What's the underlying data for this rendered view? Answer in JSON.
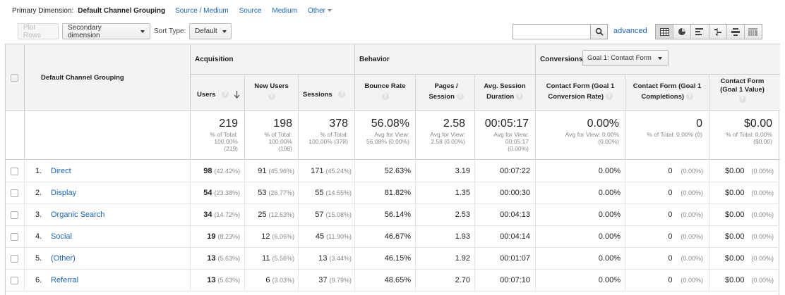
{
  "primary_dimension": {
    "label": "Primary Dimension:",
    "current": "Default Channel Grouping",
    "options": [
      "Source / Medium",
      "Source",
      "Medium",
      "Other"
    ]
  },
  "toolbar": {
    "plot_rows": "Plot Rows",
    "secondary_dimension": "Secondary dimension",
    "sort_type_label": "Sort Type:",
    "sort_type_value": "Default",
    "search_value": "",
    "advanced": "advanced",
    "view_icons": [
      "table-view-icon",
      "pie-view-icon",
      "performance-view-icon",
      "comparison-view-icon",
      "term-cloud-view-icon",
      "pivot-view-icon"
    ]
  },
  "header": {
    "dimension_col": "Default Channel Grouping",
    "acquisition": "Acquisition",
    "behavior": "Behavior",
    "conversions": "Conversions",
    "goal_select": "Goal 1: Contact Form",
    "cols": {
      "users": "Users",
      "new_users": "New Users",
      "sessions": "Sessions",
      "bounce_rate": "Bounce Rate",
      "pages_session": "Pages / Session",
      "avg_session": "Avg. Session Duration",
      "conv_rate": "Contact Form (Goal 1 Conversion Rate)",
      "completions": "Contact Form (Goal 1 Completions)",
      "value": "Contact Form (Goal 1 Value)"
    }
  },
  "totals": {
    "users": {
      "big": "219",
      "l1": "% of Total:",
      "l2": "100.00%",
      "l3": "(219)"
    },
    "new_users": {
      "big": "198",
      "l1": "% of Total:",
      "l2": "100.00%",
      "l3": "(198)"
    },
    "sessions": {
      "big": "378",
      "l1": "% of Total:",
      "l2": "100.00% (378)"
    },
    "bounce_rate": {
      "big": "56.08%",
      "l1": "Avg for View:",
      "l2": "56.08% (0.00%)"
    },
    "pages_session": {
      "big": "2.58",
      "l1": "Avg for View:",
      "l2": "2.58 (0.00%)"
    },
    "avg_session": {
      "big": "00:05:17",
      "l1": "Avg for View:",
      "l2": "00:05:17",
      "l3": "(0.00%)"
    },
    "conv_rate": {
      "big": "0.00%",
      "l1": "Avg for View: 0.00%",
      "l2": "(0.00%)"
    },
    "completions": {
      "big": "0",
      "l1": "% of Total: 0.00% (0)"
    },
    "value": {
      "big": "$0.00",
      "l1": "% of Total: 0.00%",
      "l2": "($0.00)"
    }
  },
  "rows": [
    {
      "idx": "1.",
      "name": "Direct",
      "users": "98",
      "users_pct": "(42.42%)",
      "new_users": "91",
      "new_users_pct": "(45.96%)",
      "sessions": "171",
      "sessions_pct": "(45.24%)",
      "bounce": "52.63%",
      "pages": "3.19",
      "duration": "00:07:22",
      "conv_rate": "0.00%",
      "completions": "0",
      "completions_pct": "(0.00%)",
      "value": "$0.00",
      "value_pct": "(0.00%)"
    },
    {
      "idx": "2.",
      "name": "Display",
      "users": "54",
      "users_pct": "(23.38%)",
      "new_users": "53",
      "new_users_pct": "(26.77%)",
      "sessions": "55",
      "sessions_pct": "(14.55%)",
      "bounce": "81.82%",
      "pages": "1.35",
      "duration": "00:00:30",
      "conv_rate": "0.00%",
      "completions": "0",
      "completions_pct": "(0.00%)",
      "value": "$0.00",
      "value_pct": "(0.00%)"
    },
    {
      "idx": "3.",
      "name": "Organic Search",
      "users": "34",
      "users_pct": "(14.72%)",
      "new_users": "25",
      "new_users_pct": "(12.63%)",
      "sessions": "57",
      "sessions_pct": "(15.08%)",
      "bounce": "56.14%",
      "pages": "2.53",
      "duration": "00:04:13",
      "conv_rate": "0.00%",
      "completions": "0",
      "completions_pct": "(0.00%)",
      "value": "$0.00",
      "value_pct": "(0.00%)"
    },
    {
      "idx": "4.",
      "name": "Social",
      "users": "19",
      "users_pct": "(8.23%)",
      "new_users": "12",
      "new_users_pct": "(6.06%)",
      "sessions": "45",
      "sessions_pct": "(11.90%)",
      "bounce": "46.67%",
      "pages": "1.93",
      "duration": "00:04:14",
      "conv_rate": "0.00%",
      "completions": "0",
      "completions_pct": "(0.00%)",
      "value": "$0.00",
      "value_pct": "(0.00%)"
    },
    {
      "idx": "5.",
      "name": "(Other)",
      "users": "13",
      "users_pct": "(5.63%)",
      "new_users": "11",
      "new_users_pct": "(5.56%)",
      "sessions": "13",
      "sessions_pct": "(3.44%)",
      "bounce": "46.15%",
      "pages": "1.92",
      "duration": "00:01:07",
      "conv_rate": "0.00%",
      "completions": "0",
      "completions_pct": "(0.00%)",
      "value": "$0.00",
      "value_pct": "(0.00%)"
    },
    {
      "idx": "6.",
      "name": "Referral",
      "users": "13",
      "users_pct": "(5.63%)",
      "new_users": "6",
      "new_users_pct": "(3.03%)",
      "sessions": "37",
      "sessions_pct": "(9.79%)",
      "bounce": "48.65%",
      "pages": "2.70",
      "duration": "00:07:10",
      "conv_rate": "0.00%",
      "completions": "0",
      "completions_pct": "(0.00%)",
      "value": "$0.00",
      "value_pct": "(0.00%)"
    }
  ],
  "colors": {
    "link": "#1a66b8",
    "header_bg": "#f3f3f3",
    "muted": "#888888"
  }
}
